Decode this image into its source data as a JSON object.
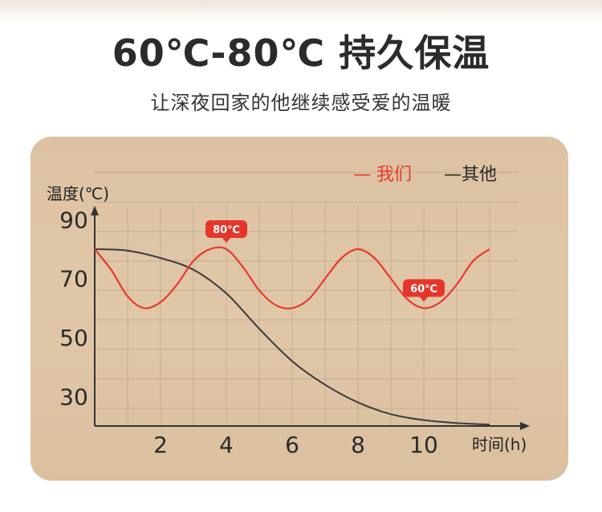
{
  "header": {
    "title": "60℃-80℃ 持久保温",
    "subtitle": "让深夜回家的他继续感受爱的温暖"
  },
  "colors": {
    "ours": "#e83a2c",
    "others": "#3a3a3a",
    "badge": "#e5362b",
    "grid": "#b49f86",
    "axis": "#333333"
  },
  "chart_data": {
    "type": "line",
    "ylabel": "温度(℃)",
    "xlabel": "时间(h)",
    "xlim": [
      0,
      12
    ],
    "ylim": [
      20,
      95
    ],
    "x_ticks": [
      2,
      4,
      6,
      8,
      10
    ],
    "x_tick_labels": [
      "2",
      "4",
      "6",
      "8",
      "10"
    ],
    "y_ticks": [
      30,
      50,
      70,
      90
    ],
    "y_tick_labels": [
      "30",
      "50",
      "70",
      "90"
    ],
    "grid": true,
    "legend_position": "top-right",
    "series": [
      {
        "name": "我们",
        "legend_label": "— 我们",
        "color": "#e83a2c",
        "x": [
          0,
          0.5,
          1,
          1.5,
          2,
          2.5,
          3,
          3.5,
          4,
          4.5,
          5,
          5.5,
          6,
          6.5,
          7,
          7.5,
          8,
          8.5,
          9,
          9.5,
          10,
          10.5,
          11,
          11.5,
          12
        ],
        "y": [
          80,
          73,
          64,
          60,
          62,
          68,
          76,
          80,
          80,
          74,
          66,
          61,
          60,
          63,
          70,
          77,
          80,
          77,
          70,
          63,
          60,
          62,
          68,
          76,
          80
        ]
      },
      {
        "name": "其他",
        "legend_label": "—其他",
        "color": "#3a3a3a",
        "x": [
          0,
          1,
          2,
          3,
          4,
          5,
          6,
          7,
          8,
          9,
          10,
          11,
          12
        ],
        "y": [
          80,
          79.5,
          77,
          73,
          65,
          53,
          42,
          34,
          28,
          24,
          22,
          21,
          20.5
        ]
      }
    ],
    "annotations": [
      {
        "text": "80℃",
        "x": 4,
        "y": 80
      },
      {
        "text": "60℃",
        "x": 10,
        "y": 60
      }
    ]
  }
}
